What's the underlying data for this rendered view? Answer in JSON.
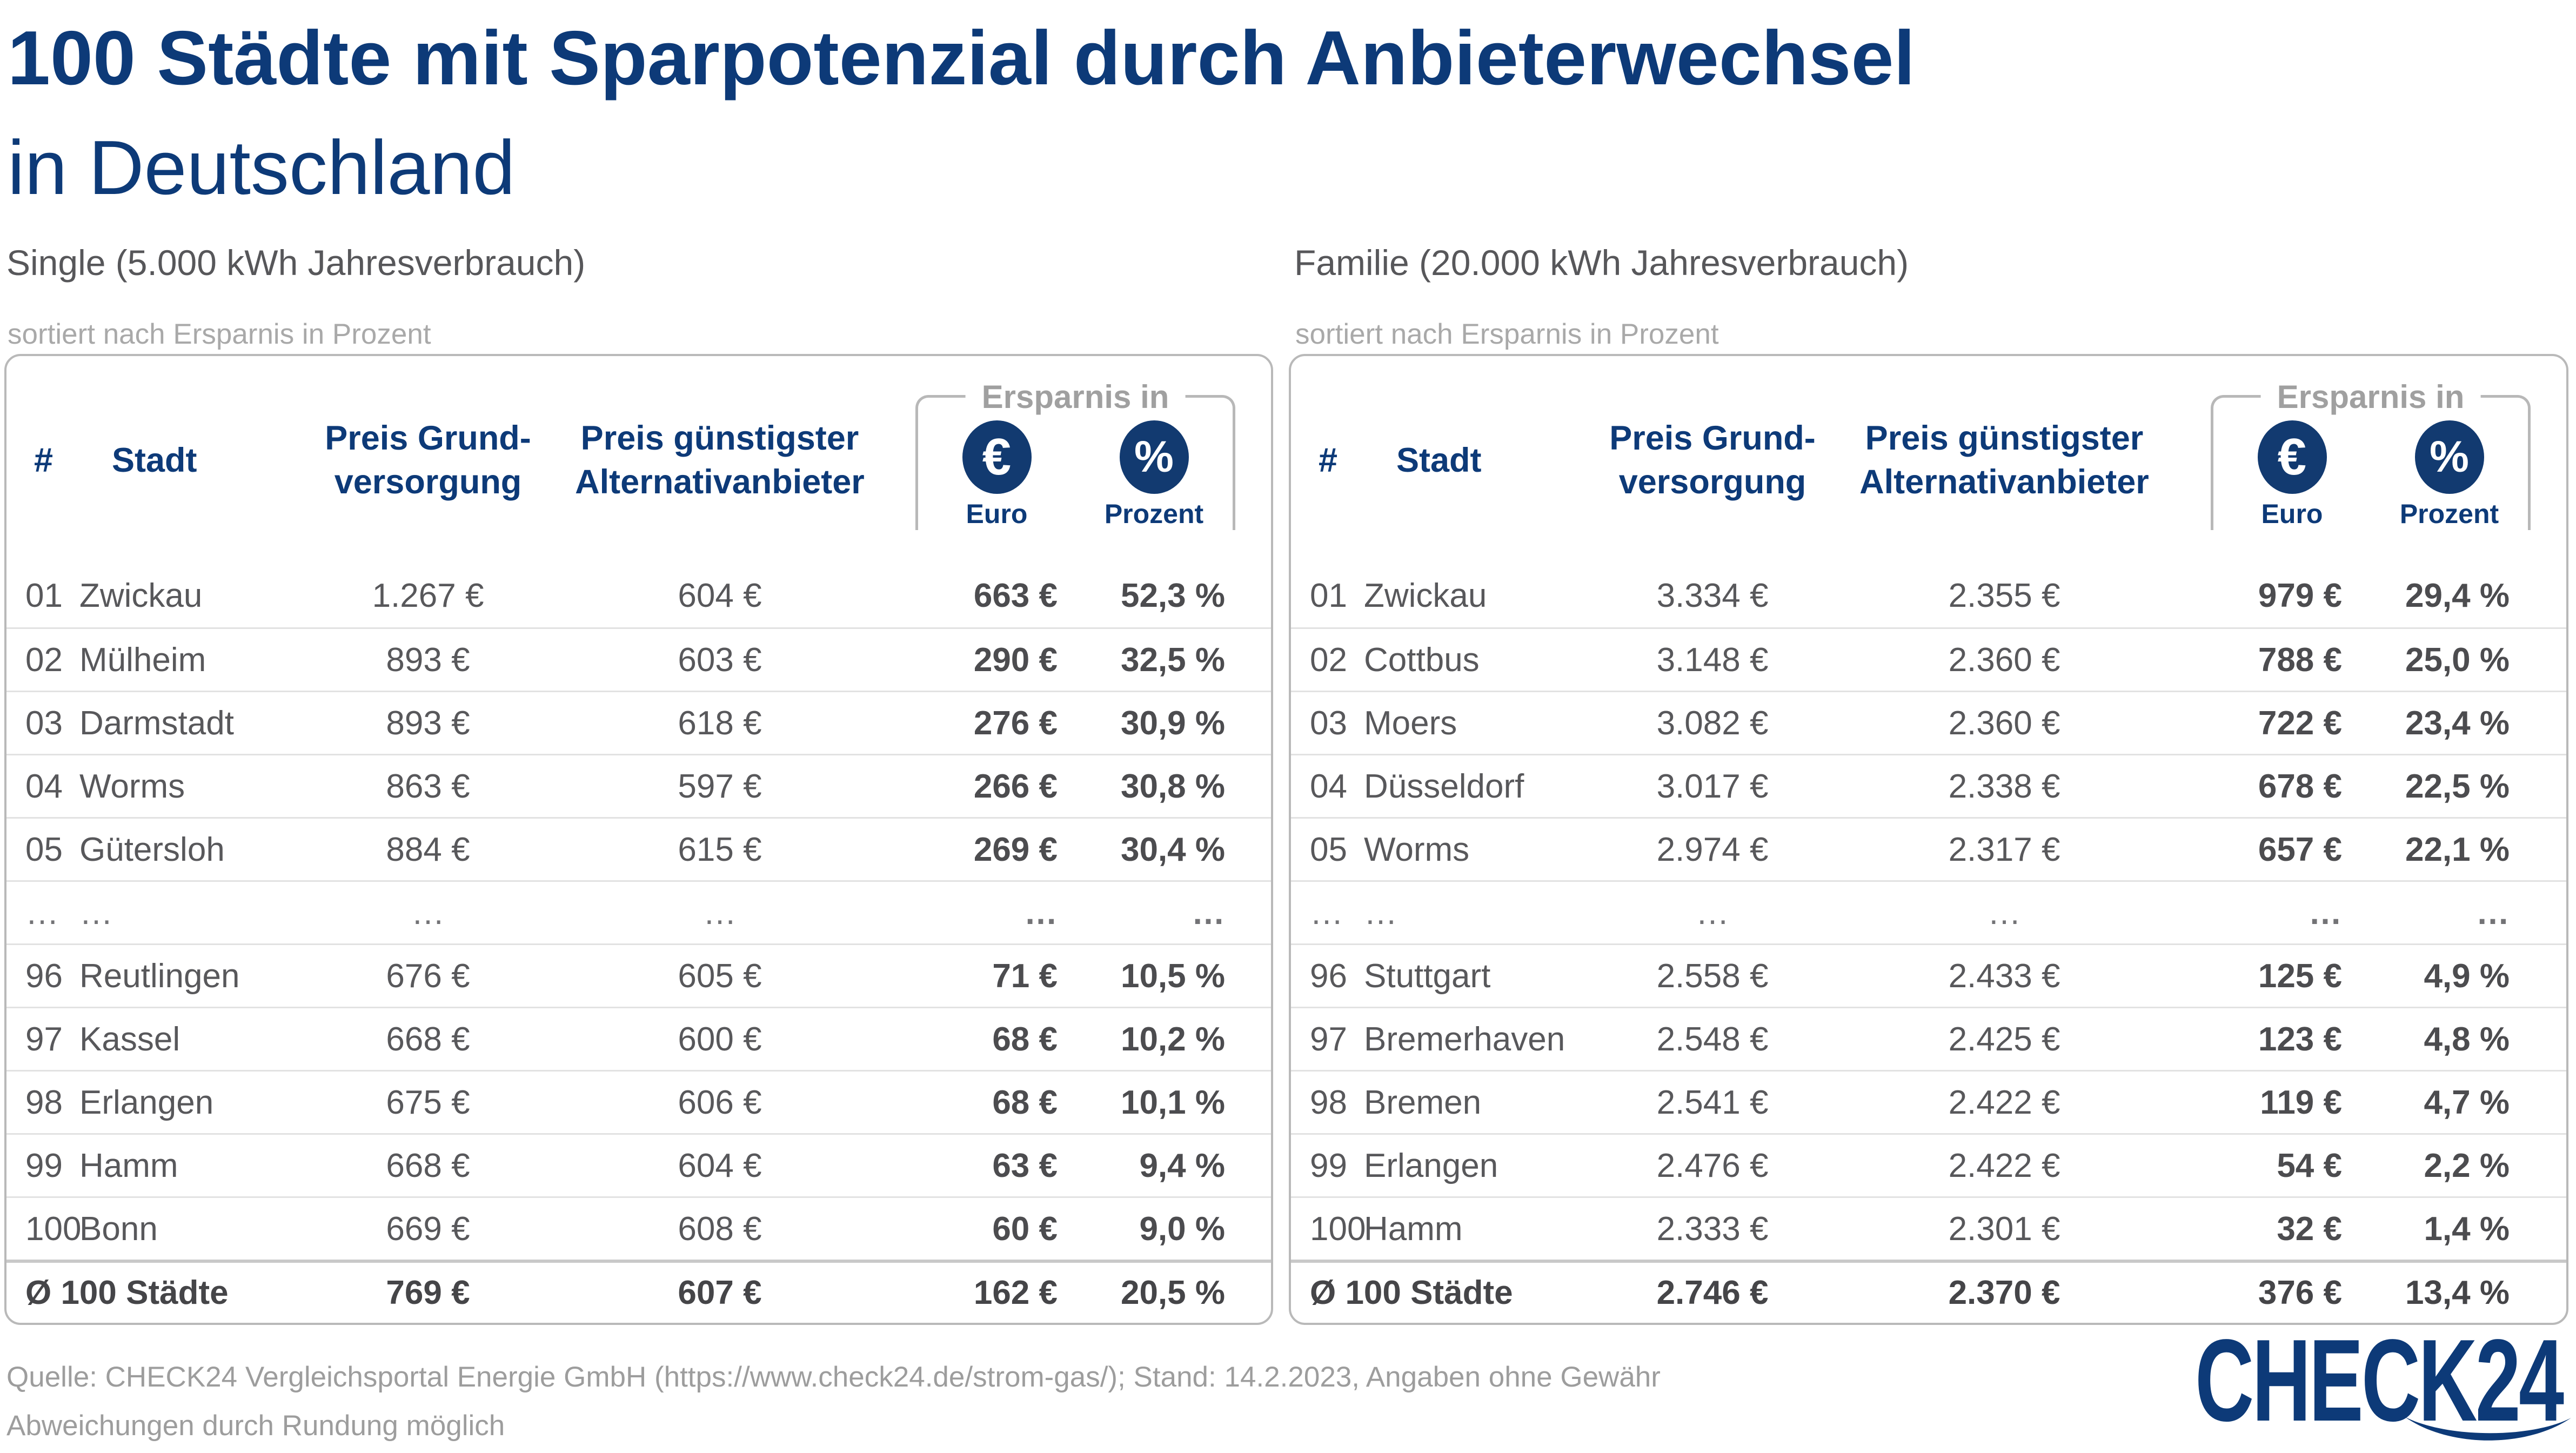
{
  "title": {
    "line1": "100 Städte mit Sparpotenzial durch Anbieterwechsel",
    "line2": "in Deutschland"
  },
  "tables": [
    {
      "section_label": "Single (5.000 kWh Jahresverbrauch)",
      "sort_note": "sortiert nach Ersparnis in Prozent",
      "columns": {
        "rank": "#",
        "city": "Stadt",
        "base_l1": "Preis Grund-",
        "base_l2": "versorgung",
        "alt_l1": "Preis günstigster",
        "alt_l2": "Alternativanbieter",
        "savings_group": "Ersparnis in",
        "euro_icon": "€",
        "percent_icon": "%",
        "euro_label": "Euro",
        "percent_label": "Prozent"
      },
      "rows_top": [
        [
          "01",
          "Zwickau",
          "1.267 €",
          "604 €",
          "663 €",
          "52,3 %"
        ],
        [
          "02",
          "Mülheim",
          "893 €",
          "603 €",
          "290 €",
          "32,5 %"
        ],
        [
          "03",
          "Darmstadt",
          "893 €",
          "618 €",
          "276 €",
          "30,9 %"
        ],
        [
          "04",
          "Worms",
          "863 €",
          "597 €",
          "266 €",
          "30,8 %"
        ],
        [
          "05",
          "Gütersloh",
          "884 €",
          "615 €",
          "269 €",
          "30,4 %"
        ]
      ],
      "ellipsis_row": [
        "…",
        "…",
        "…",
        "…",
        "…",
        "…"
      ],
      "rows_bottom": [
        [
          "96",
          "Reutlingen",
          "676 €",
          "605 €",
          "71 €",
          "10,5 %"
        ],
        [
          "97",
          "Kassel",
          "668 €",
          "600 €",
          "68 €",
          "10,2 %"
        ],
        [
          "98",
          "Erlangen",
          "675 €",
          "606 €",
          "68 €",
          "10,1 %"
        ],
        [
          "99",
          "Hamm",
          "668 €",
          "604 €",
          "63 €",
          "9,4 %"
        ],
        [
          "100",
          "Bonn",
          "669 €",
          "608 €",
          "60 €",
          "9,0 %"
        ]
      ],
      "average_row": [
        "Ø 100 Städte",
        "769 €",
        "607 €",
        "162 €",
        "20,5 %"
      ]
    },
    {
      "section_label": "Familie (20.000 kWh Jahresverbrauch)",
      "sort_note": "sortiert nach Ersparnis in Prozent",
      "columns": {
        "rank": "#",
        "city": "Stadt",
        "base_l1": "Preis Grund-",
        "base_l2": "versorgung",
        "alt_l1": "Preis günstigster",
        "alt_l2": "Alternativanbieter",
        "savings_group": "Ersparnis in",
        "euro_icon": "€",
        "percent_icon": "%",
        "euro_label": "Euro",
        "percent_label": "Prozent"
      },
      "rows_top": [
        [
          "01",
          "Zwickau",
          "3.334 €",
          "2.355 €",
          "979 €",
          "29,4 %"
        ],
        [
          "02",
          "Cottbus",
          "3.148 €",
          "2.360 €",
          "788 €",
          "25,0 %"
        ],
        [
          "03",
          "Moers",
          "3.082 €",
          "2.360 €",
          "722 €",
          "23,4 %"
        ],
        [
          "04",
          "Düsseldorf",
          "3.017 €",
          "2.338 €",
          "678 €",
          "22,5 %"
        ],
        [
          "05",
          "Worms",
          "2.974 €",
          "2.317 €",
          "657 €",
          "22,1 %"
        ]
      ],
      "ellipsis_row": [
        "…",
        "…",
        "…",
        "…",
        "…",
        "…"
      ],
      "rows_bottom": [
        [
          "96",
          "Stuttgart",
          "2.558 €",
          "2.433 €",
          "125 €",
          "4,9 %"
        ],
        [
          "97",
          "Bremerhaven",
          "2.548 €",
          "2.425 €",
          "123 €",
          "4,8 %"
        ],
        [
          "98",
          "Bremen",
          "2.541 €",
          "2.422 €",
          "119 €",
          "4,7 %"
        ],
        [
          "99",
          "Erlangen",
          "2.476 €",
          "2.422 €",
          "54 €",
          "2,2 %"
        ],
        [
          "100",
          "Hamm",
          "2.333 €",
          "2.301 €",
          "32 €",
          "1,4 %"
        ]
      ],
      "average_row": [
        "Ø 100 Städte",
        "2.746 €",
        "2.370 €",
        "376 €",
        "13,4 %"
      ]
    }
  ],
  "footer": {
    "line1": "Quelle: CHECK24 Vergleichsportal Energie GmbH (https://www.check24.de/strom-gas/); Stand: 14.2.2023, Angaben ohne Gewähr",
    "line2": "Abweichungen durch Rundung möglich"
  },
  "logo": {
    "text": "CHECK24"
  },
  "colors": {
    "accent_navy": "#0d3a78",
    "icon_navy": "#123a70",
    "data_gray": "#58585b",
    "muted_gray": "#a0a0a0",
    "border_gray": "#b9b9b9",
    "separator_gray": "#e2e2e2"
  },
  "chart_data": [
    {
      "type": "table",
      "title": "Single (5.000 kWh Jahresverbrauch)",
      "subtitle": "sortiert nach Ersparnis in Prozent",
      "columns": [
        "#",
        "Stadt",
        "Preis Grundversorgung",
        "Preis günstigster Alternativanbieter",
        "Ersparnis in Euro",
        "Ersparnis in Prozent"
      ],
      "rows": [
        [
          "01",
          "Zwickau",
          "1.267 €",
          "604 €",
          "663 €",
          "52,3 %"
        ],
        [
          "02",
          "Mülheim",
          "893 €",
          "603 €",
          "290 €",
          "32,5 %"
        ],
        [
          "03",
          "Darmstadt",
          "893 €",
          "618 €",
          "276 €",
          "30,9 %"
        ],
        [
          "04",
          "Worms",
          "863 €",
          "597 €",
          "266 €",
          "30,8 %"
        ],
        [
          "05",
          "Gütersloh",
          "884 €",
          "615 €",
          "269 €",
          "30,4 %"
        ],
        [
          "96",
          "Reutlingen",
          "676 €",
          "605 €",
          "71 €",
          "10,5 %"
        ],
        [
          "97",
          "Kassel",
          "668 €",
          "600 €",
          "68 €",
          "10,2 %"
        ],
        [
          "98",
          "Erlangen",
          "675 €",
          "606 €",
          "68 €",
          "10,1 %"
        ],
        [
          "99",
          "Hamm",
          "668 €",
          "604 €",
          "63 €",
          "9,4 %"
        ],
        [
          "100",
          "Bonn",
          "669 €",
          "608 €",
          "60 €",
          "9,0 %"
        ]
      ],
      "average": [
        "Ø 100 Städte",
        "769 €",
        "607 €",
        "162 €",
        "20,5 %"
      ]
    },
    {
      "type": "table",
      "title": "Familie (20.000 kWh Jahresverbrauch)",
      "subtitle": "sortiert nach Ersparnis in Prozent",
      "columns": [
        "#",
        "Stadt",
        "Preis Grundversorgung",
        "Preis günstigster Alternativanbieter",
        "Ersparnis in Euro",
        "Ersparnis in Prozent"
      ],
      "rows": [
        [
          "01",
          "Zwickau",
          "3.334 €",
          "2.355 €",
          "979 €",
          "29,4 %"
        ],
        [
          "02",
          "Cottbus",
          "3.148 €",
          "2.360 €",
          "788 €",
          "25,0 %"
        ],
        [
          "03",
          "Moers",
          "3.082 €",
          "2.360 €",
          "722 €",
          "23,4 %"
        ],
        [
          "04",
          "Düsseldorf",
          "3.017 €",
          "2.338 €",
          "678 €",
          "22,5 %"
        ],
        [
          "05",
          "Worms",
          "2.974 €",
          "2.317 €",
          "657 €",
          "22,1 %"
        ],
        [
          "96",
          "Stuttgart",
          "2.558 €",
          "2.433 €",
          "125 €",
          "4,9 %"
        ],
        [
          "97",
          "Bremerhaven",
          "2.548 €",
          "2.425 €",
          "123 €",
          "4,8 %"
        ],
        [
          "98",
          "Bremen",
          "2.541 €",
          "2.422 €",
          "119 €",
          "4,7 %"
        ],
        [
          "99",
          "Erlangen",
          "2.476 €",
          "2.422 €",
          "54 €",
          "2,2 %"
        ],
        [
          "100",
          "Hamm",
          "2.333 €",
          "2.301 €",
          "32 €",
          "1,4 %"
        ]
      ],
      "average": [
        "Ø 100 Städte",
        "2.746 €",
        "2.370 €",
        "376 €",
        "13,4 %"
      ]
    }
  ]
}
